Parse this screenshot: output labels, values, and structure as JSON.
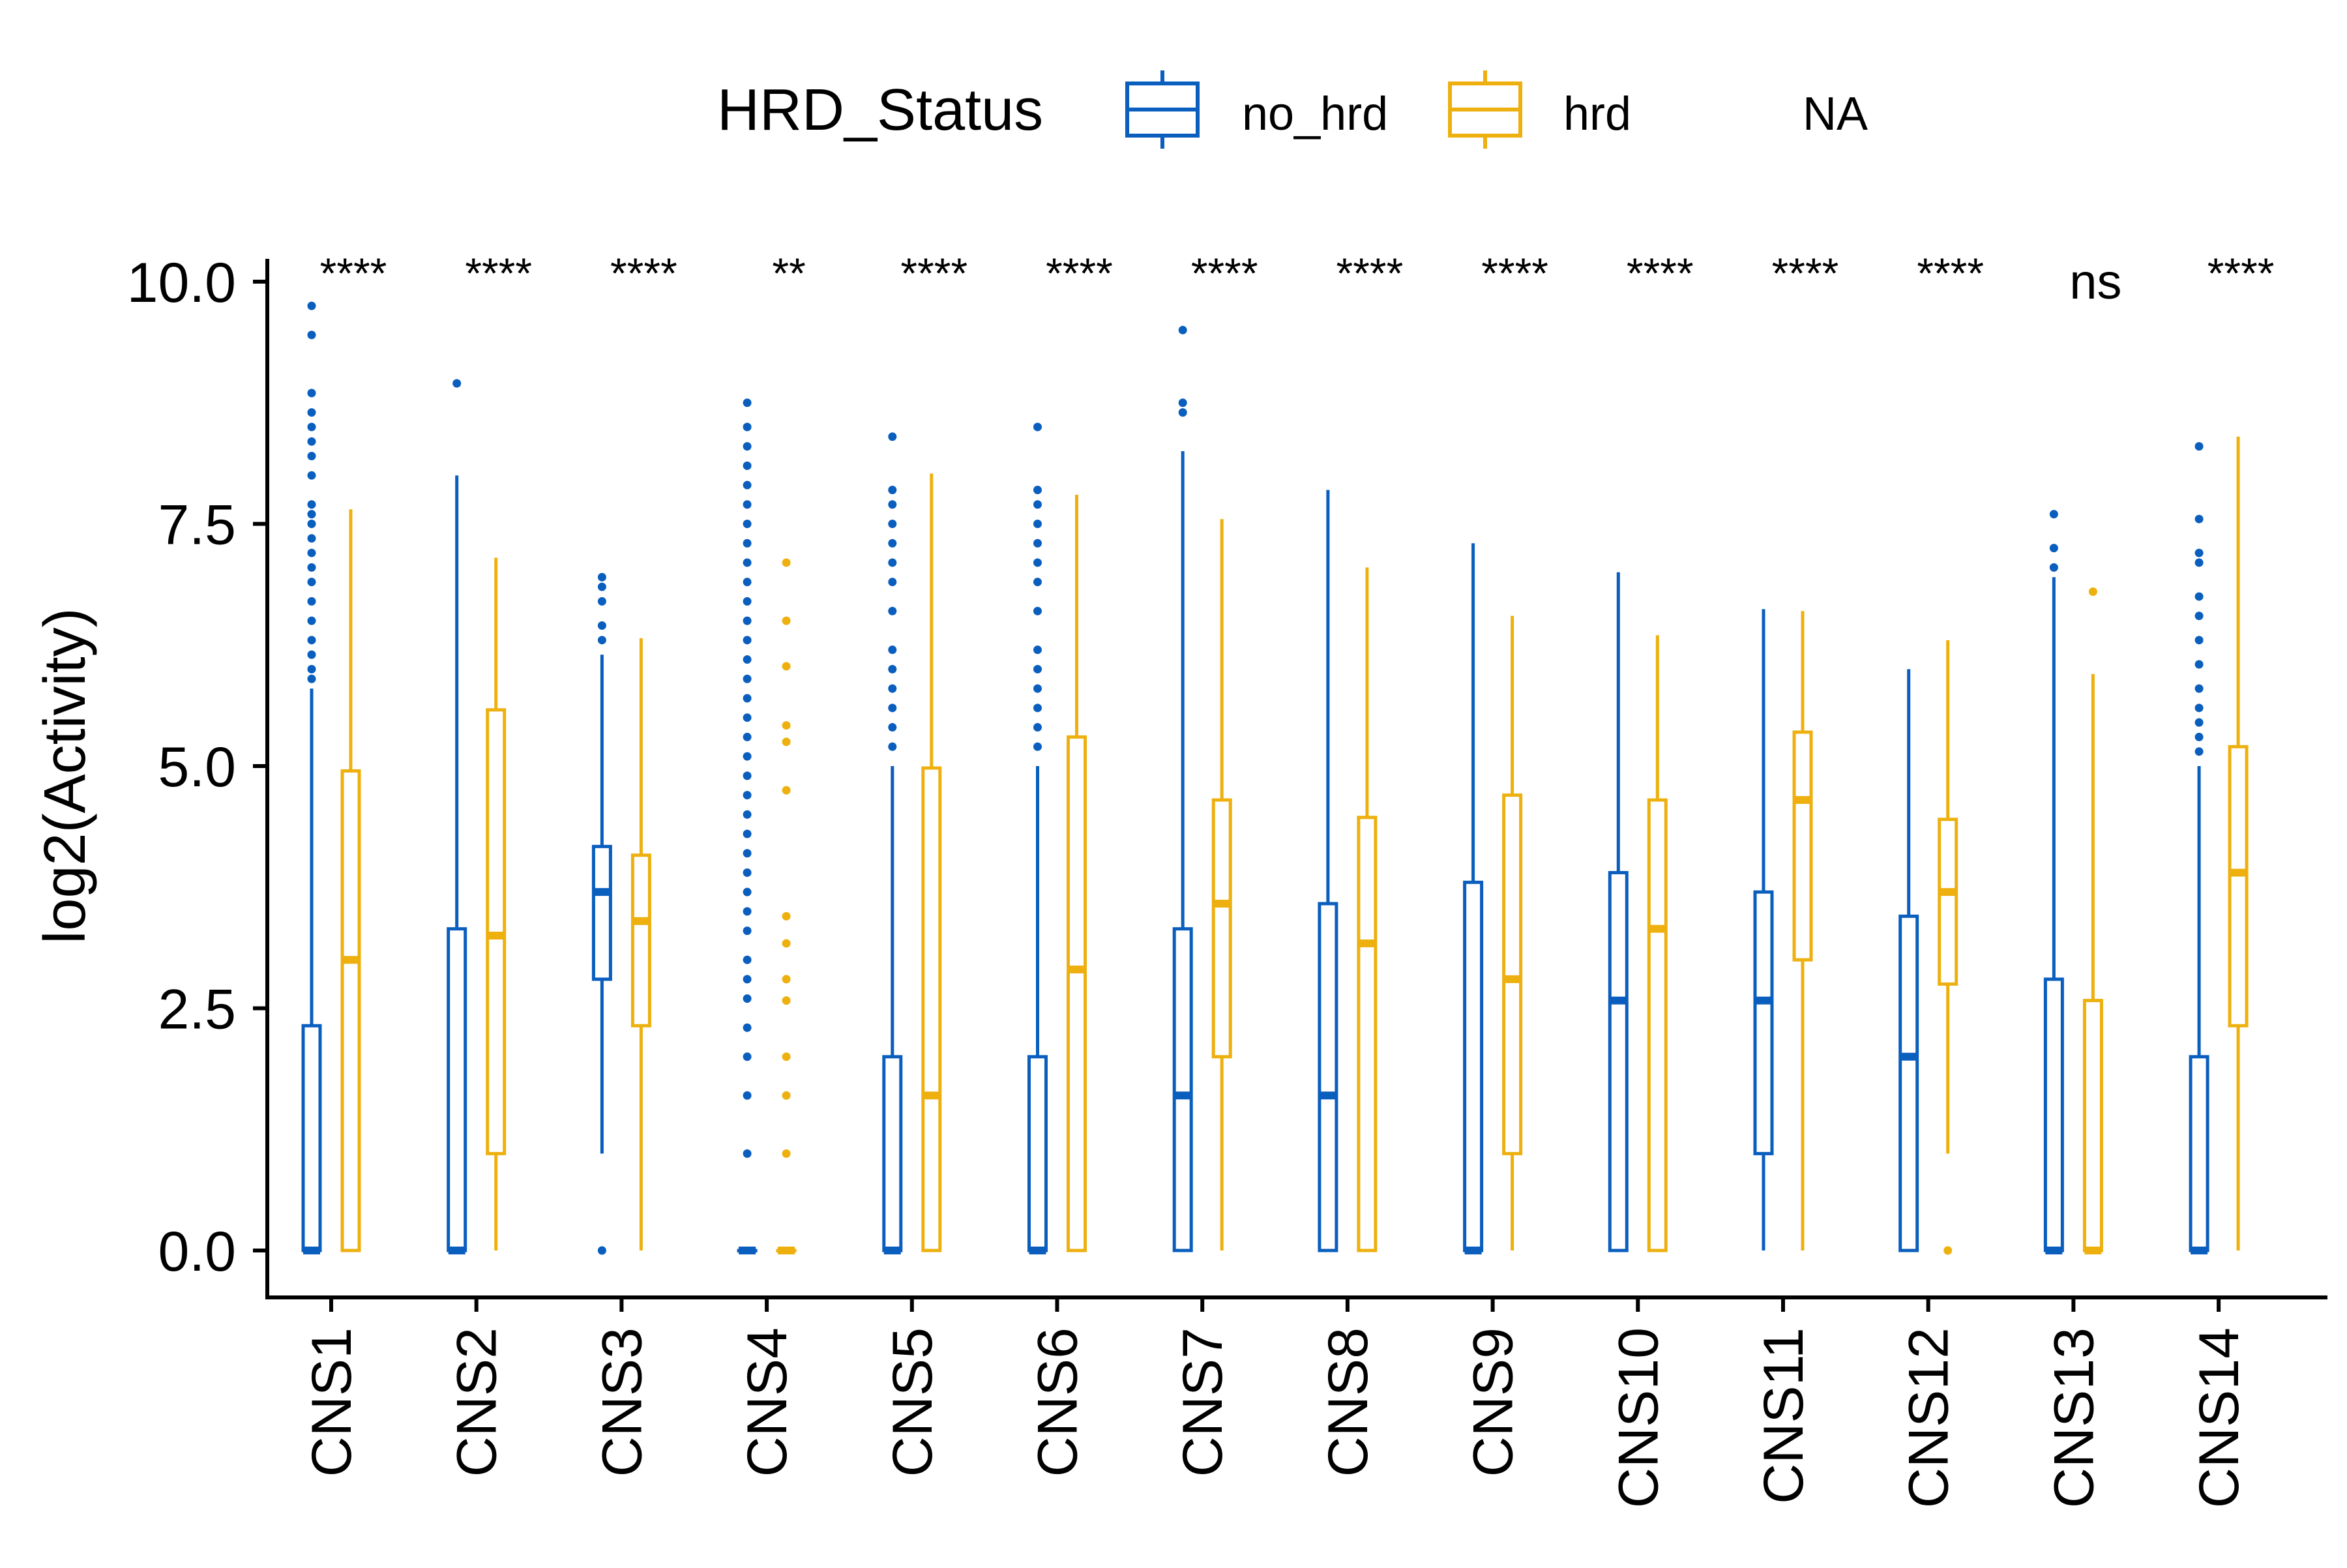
{
  "chart_data": {
    "type": "boxplot",
    "title": "",
    "xlabel": "",
    "ylabel": "log2(Activity)",
    "ylim": [
      -0.4,
      10.2
    ],
    "yticks": [
      "0.0",
      "2.5",
      "5.0",
      "7.5",
      "10.0"
    ],
    "ytick_values": [
      0,
      2.5,
      5,
      7.5,
      10
    ],
    "legend": {
      "title": "HRD_Status",
      "position": "top",
      "entries": [
        {
          "label": "no_hrd",
          "color": "#0A5EBE"
        },
        {
          "label": "hrd",
          "color": "#EDB00F"
        },
        {
          "label": "NA",
          "color": "none"
        }
      ]
    },
    "grid": false,
    "colors": {
      "no_hrd": "#0A5EBE",
      "hrd": "#EDB00F",
      "axis": "#000000"
    },
    "categories": [
      "CNS1",
      "CNS2",
      "CNS3",
      "CNS4",
      "CNS5",
      "CNS6",
      "CNS7",
      "CNS8",
      "CNS9",
      "CNS10",
      "CNS11",
      "CNS12",
      "CNS13",
      "CNS14"
    ],
    "significance": [
      "****",
      "****",
      "****",
      "**",
      "****",
      "****",
      "****",
      "****",
      "****",
      "****",
      "****",
      "****",
      "ns",
      "****"
    ],
    "series": [
      {
        "name": "no_hrd",
        "boxes": [
          {
            "min": 0,
            "q1": 0,
            "median": 0,
            "q3": 2.32,
            "max": 5.8,
            "outliers": [
              5.9,
              6.0,
              6.15,
              6.3,
              6.5,
              6.7,
              6.9,
              7.05,
              7.2,
              7.35,
              7.5,
              7.6,
              7.7,
              8.0,
              8.2,
              8.35,
              8.5,
              8.65,
              8.85,
              9.45,
              9.75
            ]
          },
          {
            "min": 0,
            "q1": 0,
            "median": 0,
            "q3": 3.32,
            "max": 8.0,
            "outliers": [
              8.95
            ]
          },
          {
            "min": 1.0,
            "q1": 2.8,
            "median": 3.7,
            "q3": 4.17,
            "max": 6.15,
            "outliers": [
              0.0,
              6.3,
              6.45,
              6.7,
              6.85,
              6.95
            ]
          },
          {
            "min": 0,
            "q1": 0,
            "median": 0,
            "q3": 0,
            "max": 0,
            "outliers": [
              1.0,
              1.6,
              2.0,
              2.3,
              2.6,
              2.8,
              3.0,
              3.3,
              3.5,
              3.7,
              3.9,
              4.1,
              4.3,
              4.5,
              4.7,
              4.9,
              5.1,
              5.3,
              5.5,
              5.7,
              5.9,
              6.1,
              6.3,
              6.5,
              6.7,
              6.9,
              7.1,
              7.3,
              7.5,
              7.7,
              7.9,
              8.1,
              8.3,
              8.5,
              8.75
            ]
          },
          {
            "min": 0,
            "q1": 0,
            "median": 0,
            "q3": 2.0,
            "max": 5.0,
            "outliers": [
              5.2,
              5.4,
              5.6,
              5.8,
              6.0,
              6.2,
              6.6,
              6.9,
              7.1,
              7.3,
              7.5,
              7.7,
              7.85,
              8.4
            ]
          },
          {
            "min": 0,
            "q1": 0,
            "median": 0,
            "q3": 2.0,
            "max": 5.0,
            "outliers": [
              5.2,
              5.4,
              5.6,
              5.8,
              6.0,
              6.2,
              6.6,
              6.9,
              7.1,
              7.3,
              7.5,
              7.7,
              7.85,
              8.5
            ]
          },
          {
            "min": 0,
            "q1": 0,
            "median": 1.6,
            "q3": 3.32,
            "max": 8.25,
            "outliers": [
              8.65,
              8.75,
              9.5
            ]
          },
          {
            "min": 0,
            "q1": 0,
            "median": 1.6,
            "q3": 3.58,
            "max": 7.85,
            "outliers": []
          },
          {
            "min": 0,
            "q1": 0,
            "median": 0,
            "q3": 3.8,
            "max": 7.3,
            "outliers": []
          },
          {
            "min": 0,
            "q1": 0,
            "median": 2.58,
            "q3": 3.9,
            "max": 7.0,
            "outliers": []
          },
          {
            "min": 0,
            "q1": 1.0,
            "median": 2.58,
            "q3": 3.7,
            "max": 6.62,
            "outliers": []
          },
          {
            "min": 0,
            "q1": 0,
            "median": 2.0,
            "q3": 3.45,
            "max": 6.0,
            "outliers": []
          },
          {
            "min": 0,
            "q1": 0,
            "median": 0,
            "q3": 2.8,
            "max": 6.95,
            "outliers": [
              7.05,
              7.25,
              7.6
            ]
          },
          {
            "min": 0,
            "q1": 0,
            "median": 0,
            "q3": 2.0,
            "max": 5.0,
            "outliers": [
              5.15,
              5.3,
              5.45,
              5.6,
              5.8,
              6.05,
              6.3,
              6.55,
              6.75,
              7.1,
              7.2,
              7.55,
              8.3
            ]
          }
        ]
      },
      {
        "name": "hrd",
        "boxes": [
          {
            "min": 0,
            "q1": 0,
            "median": 3.0,
            "q3": 4.95,
            "max": 7.65,
            "outliers": []
          },
          {
            "min": 0,
            "q1": 1.0,
            "median": 3.25,
            "q3": 5.58,
            "max": 7.15,
            "outliers": []
          },
          {
            "min": 0,
            "q1": 2.32,
            "median": 3.4,
            "q3": 4.08,
            "max": 6.32,
            "outliers": []
          },
          {
            "min": 0,
            "q1": 0,
            "median": 0,
            "q3": 0,
            "max": 0,
            "outliers": [
              1.0,
              1.6,
              2.0,
              2.58,
              2.8,
              3.17,
              3.45,
              4.75,
              5.25,
              5.42,
              6.03,
              6.5,
              7.1
            ]
          },
          {
            "min": 0,
            "q1": 0,
            "median": 1.6,
            "q3": 4.98,
            "max": 8.02,
            "outliers": []
          },
          {
            "min": 0,
            "q1": 0,
            "median": 2.9,
            "q3": 5.3,
            "max": 7.8,
            "outliers": []
          },
          {
            "min": 0,
            "q1": 2.0,
            "median": 3.58,
            "q3": 4.65,
            "max": 7.55,
            "outliers": []
          },
          {
            "min": 0,
            "q1": 0,
            "median": 3.17,
            "q3": 4.47,
            "max": 7.05,
            "outliers": []
          },
          {
            "min": 0,
            "q1": 1.0,
            "median": 2.8,
            "q3": 4.7,
            "max": 6.55,
            "outliers": []
          },
          {
            "min": 0,
            "q1": 0,
            "median": 3.32,
            "q3": 4.65,
            "max": 6.35,
            "outliers": []
          },
          {
            "min": 0,
            "q1": 3.0,
            "median": 4.65,
            "q3": 5.35,
            "max": 6.6,
            "outliers": []
          },
          {
            "min": 1.0,
            "q1": 2.75,
            "median": 3.7,
            "q3": 4.45,
            "max": 6.3,
            "outliers": [
              0.0
            ]
          },
          {
            "min": 0,
            "q1": 0,
            "median": 0,
            "q3": 2.58,
            "max": 5.95,
            "outliers": [
              6.8
            ]
          },
          {
            "min": 0,
            "q1": 2.32,
            "median": 3.9,
            "q3": 5.2,
            "max": 8.4,
            "outliers": []
          }
        ]
      }
    ]
  }
}
